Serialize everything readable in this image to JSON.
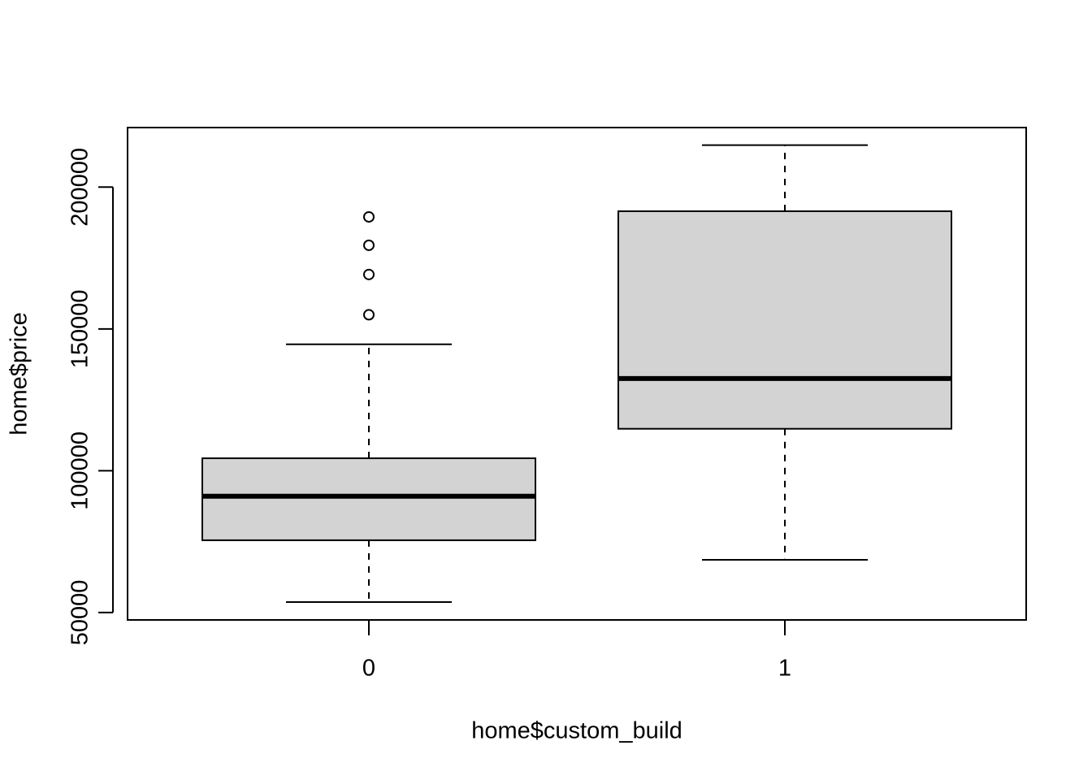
{
  "chart_data": {
    "type": "boxplot",
    "x_label": "home$custom_build",
    "y_label": "home$price",
    "categories": [
      "0",
      "1"
    ],
    "color": "#d3d3d3",
    "boxes": [
      {
        "min": 53700,
        "q1": 75500,
        "median": 91000,
        "q3": 104400,
        "max": 144600,
        "outliers": [
          155000,
          169200,
          179500,
          189500
        ]
      },
      {
        "min": 68600,
        "q1": 114800,
        "median": 132500,
        "q3": 191500,
        "max": 214800,
        "outliers": []
      }
    ],
    "ylim": [
      47400,
      221000
    ],
    "yticks": [
      50000,
      100000,
      150000,
      200000
    ]
  }
}
